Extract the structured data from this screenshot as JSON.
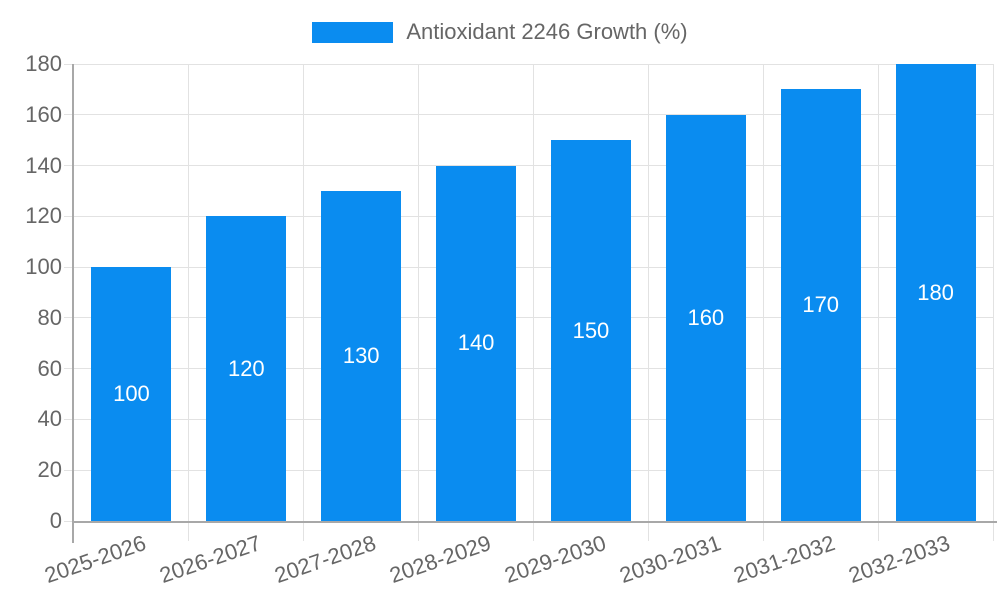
{
  "chart_data": {
    "type": "bar",
    "title": "Antioxidant 2246 Growth (%)",
    "categories": [
      "2025-2026",
      "2026-2027",
      "2027-2028",
      "2028-2029",
      "2029-2030",
      "2030-2031",
      "2031-2032",
      "2032-2033"
    ],
    "values": [
      100,
      120,
      130,
      140,
      150,
      160,
      170,
      180
    ],
    "series": [
      {
        "name": "Antioxidant 2246 Growth (%)",
        "values": [
          100,
          120,
          130,
          140,
          150,
          160,
          170,
          180
        ]
      }
    ],
    "yticks": [
      "0",
      "20",
      "40",
      "60",
      "80",
      "100",
      "120",
      "140",
      "160",
      "180"
    ],
    "ylim": [
      0,
      180
    ],
    "ytick_step": 20,
    "xlabel": "",
    "ylabel": "",
    "grid": "both",
    "legend_position": "top-center",
    "x_label_rotation_deg": -19,
    "bar_color": "#0a8cf0",
    "bar_label_color": "#ffffff",
    "grid_color": "#e2e2e2",
    "axis_color": "#a8a8a8",
    "text_color": "#666666",
    "background_color": "#ffffff"
  }
}
